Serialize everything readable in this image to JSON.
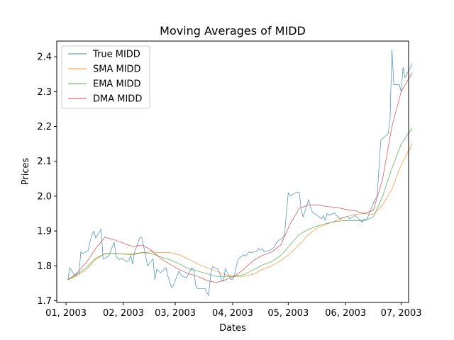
{
  "chart_data": {
    "type": "line",
    "title": "Moving Averages of MIDD",
    "xlabel": "Dates",
    "ylabel": "Prices",
    "xlim": [
      "2002-12-27",
      "2003-07-05"
    ],
    "ylim": [
      1.695,
      2.445
    ],
    "x_ticks": [
      {
        "date": "2003-01-01",
        "label": "01, 2003"
      },
      {
        "date": "2003-02-01",
        "label": "02, 2003"
      },
      {
        "date": "2003-03-01",
        "label": "03, 2003"
      },
      {
        "date": "2003-04-01",
        "label": "04, 2003"
      },
      {
        "date": "2003-05-01",
        "label": "05, 2003"
      },
      {
        "date": "2003-06-01",
        "label": "06, 2003"
      },
      {
        "date": "2003-07-01",
        "label": "07, 2003"
      }
    ],
    "y_ticks": [
      1.7,
      1.8,
      1.9,
      2.0,
      2.1,
      2.2,
      2.3,
      2.4
    ],
    "grid": false,
    "legend_position": "top-left",
    "series": [
      {
        "name": "True MIDD",
        "color": "#1f77b4",
        "points": [
          [
            "2003-01-02",
            1.76
          ],
          [
            "2003-01-03",
            1.795
          ],
          [
            "2003-01-06",
            1.77
          ],
          [
            "2003-01-07",
            1.78
          ],
          [
            "2003-01-08",
            1.778
          ],
          [
            "2003-01-09",
            1.84
          ],
          [
            "2003-01-10",
            1.835
          ],
          [
            "2003-01-13",
            1.845
          ],
          [
            "2003-01-14",
            1.87
          ],
          [
            "2003-01-15",
            1.89
          ],
          [
            "2003-01-16",
            1.9
          ],
          [
            "2003-01-17",
            1.88
          ],
          [
            "2003-01-20",
            1.905
          ],
          [
            "2003-01-21",
            1.82
          ],
          [
            "2003-01-22",
            1.822
          ],
          [
            "2003-01-23",
            1.825
          ],
          [
            "2003-01-24",
            1.828
          ],
          [
            "2003-01-27",
            1.868
          ],
          [
            "2003-01-28",
            1.83
          ],
          [
            "2003-01-29",
            1.82
          ],
          [
            "2003-01-30",
            1.818
          ],
          [
            "2003-01-31",
            1.822
          ],
          [
            "2003-02-03",
            1.812
          ],
          [
            "2003-02-04",
            1.818
          ],
          [
            "2003-02-05",
            1.83
          ],
          [
            "2003-02-06",
            1.805
          ],
          [
            "2003-02-07",
            1.84
          ],
          [
            "2003-02-10",
            1.882
          ],
          [
            "2003-02-11",
            1.88
          ],
          [
            "2003-02-12",
            1.855
          ],
          [
            "2003-02-13",
            1.83
          ],
          [
            "2003-02-14",
            1.8
          ],
          [
            "2003-02-17",
            1.82
          ],
          [
            "2003-02-18",
            1.76
          ],
          [
            "2003-02-19",
            1.79
          ],
          [
            "2003-02-20",
            1.785
          ],
          [
            "2003-02-21",
            1.78
          ],
          [
            "2003-02-24",
            1.795
          ],
          [
            "2003-02-25",
            1.77
          ],
          [
            "2003-02-26",
            1.755
          ],
          [
            "2003-02-27",
            1.738
          ],
          [
            "2003-02-28",
            1.745
          ],
          [
            "2003-03-03",
            1.785
          ],
          [
            "2003-03-04",
            1.775
          ],
          [
            "2003-03-05",
            1.77
          ],
          [
            "2003-03-06",
            1.768
          ],
          [
            "2003-03-07",
            1.765
          ],
          [
            "2003-03-10",
            1.795
          ],
          [
            "2003-03-11",
            1.79
          ],
          [
            "2003-03-12",
            1.745
          ],
          [
            "2003-03-13",
            1.735
          ],
          [
            "2003-03-14",
            1.735
          ],
          [
            "2003-03-17",
            1.735
          ],
          [
            "2003-03-18",
            1.725
          ],
          [
            "2003-03-19",
            1.715
          ],
          [
            "2003-03-20",
            1.77
          ],
          [
            "2003-03-21",
            1.798
          ],
          [
            "2003-03-24",
            1.79
          ],
          [
            "2003-03-25",
            1.78
          ],
          [
            "2003-03-26",
            1.758
          ],
          [
            "2003-03-27",
            1.755
          ],
          [
            "2003-03-28",
            1.792
          ],
          [
            "2003-03-31",
            1.762
          ],
          [
            "2003-04-01",
            1.76
          ],
          [
            "2003-04-02",
            1.775
          ],
          [
            "2003-04-03",
            1.8
          ],
          [
            "2003-04-04",
            1.82
          ],
          [
            "2003-04-07",
            1.832
          ],
          [
            "2003-04-08",
            1.828
          ],
          [
            "2003-04-09",
            1.835
          ],
          [
            "2003-04-10",
            1.84
          ],
          [
            "2003-04-11",
            1.838
          ],
          [
            "2003-04-14",
            1.842
          ],
          [
            "2003-04-15",
            1.85
          ],
          [
            "2003-04-16",
            1.845
          ],
          [
            "2003-04-17",
            1.85
          ],
          [
            "2003-04-18",
            1.84
          ],
          [
            "2003-04-21",
            1.845
          ],
          [
            "2003-04-22",
            1.848
          ],
          [
            "2003-04-23",
            1.852
          ],
          [
            "2003-04-24",
            1.86
          ],
          [
            "2003-04-25",
            1.87
          ],
          [
            "2003-04-28",
            1.88
          ],
          [
            "2003-04-29",
            1.89
          ],
          [
            "2003-04-30",
            1.95
          ],
          [
            "2003-05-01",
            2.01
          ],
          [
            "2003-05-02",
            2.0
          ],
          [
            "2003-05-05",
            2.01
          ],
          [
            "2003-05-06",
            2.012
          ],
          [
            "2003-05-07",
            2.01
          ],
          [
            "2003-05-08",
            1.96
          ],
          [
            "2003-05-09",
            1.94
          ],
          [
            "2003-05-12",
            1.99
          ],
          [
            "2003-05-13",
            1.97
          ],
          [
            "2003-05-14",
            1.955
          ],
          [
            "2003-05-15",
            1.95
          ],
          [
            "2003-05-16",
            1.948
          ],
          [
            "2003-05-19",
            1.935
          ],
          [
            "2003-05-20",
            1.945
          ],
          [
            "2003-05-21",
            1.93
          ],
          [
            "2003-05-22",
            1.95
          ],
          [
            "2003-05-23",
            1.945
          ],
          [
            "2003-05-26",
            1.952
          ],
          [
            "2003-05-27",
            1.945
          ],
          [
            "2003-05-28",
            1.94
          ],
          [
            "2003-05-29",
            1.935
          ],
          [
            "2003-05-30",
            1.938
          ],
          [
            "2003-06-02",
            1.942
          ],
          [
            "2003-06-03",
            1.935
          ],
          [
            "2003-06-04",
            1.938
          ],
          [
            "2003-06-05",
            1.94
          ],
          [
            "2003-06-06",
            1.945
          ],
          [
            "2003-06-09",
            1.93
          ],
          [
            "2003-06-10",
            1.925
          ],
          [
            "2003-06-11",
            1.935
          ],
          [
            "2003-06-12",
            1.93
          ],
          [
            "2003-06-13",
            1.94
          ],
          [
            "2003-06-16",
            1.98
          ],
          [
            "2003-06-17",
            1.99
          ],
          [
            "2003-06-18",
            2.0
          ],
          [
            "2003-06-19",
            2.08
          ],
          [
            "2003-06-20",
            2.16
          ],
          [
            "2003-06-23",
            2.175
          ],
          [
            "2003-06-24",
            2.18
          ],
          [
            "2003-06-25",
            2.22
          ],
          [
            "2003-06-26",
            2.42
          ],
          [
            "2003-06-27",
            2.32
          ],
          [
            "2003-06-30",
            2.32
          ],
          [
            "2003-07-01",
            2.3
          ],
          [
            "2003-07-02",
            2.37
          ],
          [
            "2003-07-03",
            2.34
          ],
          [
            "2003-07-07",
            2.38
          ]
        ]
      },
      {
        "name": "SMA MIDD",
        "color": "#ff7f0e",
        "points": [
          [
            "2003-01-02",
            1.76
          ],
          [
            "2003-01-07",
            1.772
          ],
          [
            "2003-01-12",
            1.79
          ],
          [
            "2003-01-17",
            1.818
          ],
          [
            "2003-01-22",
            1.835
          ],
          [
            "2003-01-27",
            1.836
          ],
          [
            "2003-02-01",
            1.834
          ],
          [
            "2003-02-06",
            1.835
          ],
          [
            "2003-02-11",
            1.838
          ],
          [
            "2003-02-16",
            1.84
          ],
          [
            "2003-02-21",
            1.838
          ],
          [
            "2003-02-26",
            1.838
          ],
          [
            "2003-03-03",
            1.832
          ],
          [
            "2003-03-08",
            1.82
          ],
          [
            "2003-03-13",
            1.806
          ],
          [
            "2003-03-18",
            1.795
          ],
          [
            "2003-03-23",
            1.785
          ],
          [
            "2003-03-28",
            1.775
          ],
          [
            "2003-04-02",
            1.77
          ],
          [
            "2003-04-07",
            1.77
          ],
          [
            "2003-04-12",
            1.776
          ],
          [
            "2003-04-17",
            1.79
          ],
          [
            "2003-04-22",
            1.8
          ],
          [
            "2003-04-27",
            1.815
          ],
          [
            "2003-05-02",
            1.835
          ],
          [
            "2003-05-07",
            1.862
          ],
          [
            "2003-05-12",
            1.89
          ],
          [
            "2003-05-17",
            1.91
          ],
          [
            "2003-05-22",
            1.92
          ],
          [
            "2003-05-27",
            1.93
          ],
          [
            "2003-06-01",
            1.94
          ],
          [
            "2003-06-06",
            1.948
          ],
          [
            "2003-06-11",
            1.95
          ],
          [
            "2003-06-16",
            1.948
          ],
          [
            "2003-06-21",
            1.975
          ],
          [
            "2003-06-26",
            2.02
          ],
          [
            "2003-07-01",
            2.09
          ],
          [
            "2003-07-07",
            2.15
          ]
        ]
      },
      {
        "name": "EMA MIDD",
        "color": "#2ca02c",
        "points": [
          [
            "2003-01-02",
            1.76
          ],
          [
            "2003-01-07",
            1.775
          ],
          [
            "2003-01-12",
            1.795
          ],
          [
            "2003-01-17",
            1.822
          ],
          [
            "2003-01-22",
            1.834
          ],
          [
            "2003-01-27",
            1.836
          ],
          [
            "2003-02-01",
            1.834
          ],
          [
            "2003-02-06",
            1.832
          ],
          [
            "2003-02-11",
            1.838
          ],
          [
            "2003-02-16",
            1.836
          ],
          [
            "2003-02-21",
            1.826
          ],
          [
            "2003-02-26",
            1.818
          ],
          [
            "2003-03-03",
            1.806
          ],
          [
            "2003-03-08",
            1.792
          ],
          [
            "2003-03-13",
            1.785
          ],
          [
            "2003-03-18",
            1.778
          ],
          [
            "2003-03-23",
            1.77
          ],
          [
            "2003-03-28",
            1.77
          ],
          [
            "2003-04-02",
            1.77
          ],
          [
            "2003-04-07",
            1.775
          ],
          [
            "2003-04-12",
            1.788
          ],
          [
            "2003-04-17",
            1.802
          ],
          [
            "2003-04-22",
            1.812
          ],
          [
            "2003-04-27",
            1.83
          ],
          [
            "2003-05-02",
            1.86
          ],
          [
            "2003-05-07",
            1.89
          ],
          [
            "2003-05-12",
            1.905
          ],
          [
            "2003-05-17",
            1.915
          ],
          [
            "2003-05-22",
            1.922
          ],
          [
            "2003-05-27",
            1.928
          ],
          [
            "2003-06-01",
            1.93
          ],
          [
            "2003-06-06",
            1.93
          ],
          [
            "2003-06-11",
            1.93
          ],
          [
            "2003-06-16",
            1.94
          ],
          [
            "2003-06-21",
            2.0
          ],
          [
            "2003-06-26",
            2.08
          ],
          [
            "2003-07-01",
            2.15
          ],
          [
            "2003-07-07",
            2.195
          ]
        ]
      },
      {
        "name": "DMA MIDD",
        "color": "#d62728",
        "points": [
          [
            "2003-01-02",
            1.76
          ],
          [
            "2003-01-07",
            1.78
          ],
          [
            "2003-01-12",
            1.81
          ],
          [
            "2003-01-17",
            1.85
          ],
          [
            "2003-01-22",
            1.882
          ],
          [
            "2003-01-27",
            1.875
          ],
          [
            "2003-02-01",
            1.865
          ],
          [
            "2003-02-06",
            1.855
          ],
          [
            "2003-02-11",
            1.86
          ],
          [
            "2003-02-16",
            1.845
          ],
          [
            "2003-02-21",
            1.822
          ],
          [
            "2003-02-26",
            1.805
          ],
          [
            "2003-03-03",
            1.79
          ],
          [
            "2003-03-08",
            1.778
          ],
          [
            "2003-03-13",
            1.77
          ],
          [
            "2003-03-18",
            1.758
          ],
          [
            "2003-03-23",
            1.752
          ],
          [
            "2003-03-28",
            1.76
          ],
          [
            "2003-04-02",
            1.77
          ],
          [
            "2003-04-07",
            1.79
          ],
          [
            "2003-04-12",
            1.815
          ],
          [
            "2003-04-17",
            1.83
          ],
          [
            "2003-04-22",
            1.84
          ],
          [
            "2003-04-27",
            1.86
          ],
          [
            "2003-05-02",
            1.92
          ],
          [
            "2003-05-07",
            1.965
          ],
          [
            "2003-05-12",
            1.975
          ],
          [
            "2003-05-17",
            1.975
          ],
          [
            "2003-05-22",
            1.97
          ],
          [
            "2003-05-27",
            1.968
          ],
          [
            "2003-06-01",
            1.962
          ],
          [
            "2003-06-06",
            1.958
          ],
          [
            "2003-06-11",
            1.95
          ],
          [
            "2003-06-16",
            1.96
          ],
          [
            "2003-06-21",
            2.05
          ],
          [
            "2003-06-26",
            2.2
          ],
          [
            "2003-07-01",
            2.3
          ],
          [
            "2003-07-07",
            2.355
          ]
        ]
      }
    ]
  }
}
